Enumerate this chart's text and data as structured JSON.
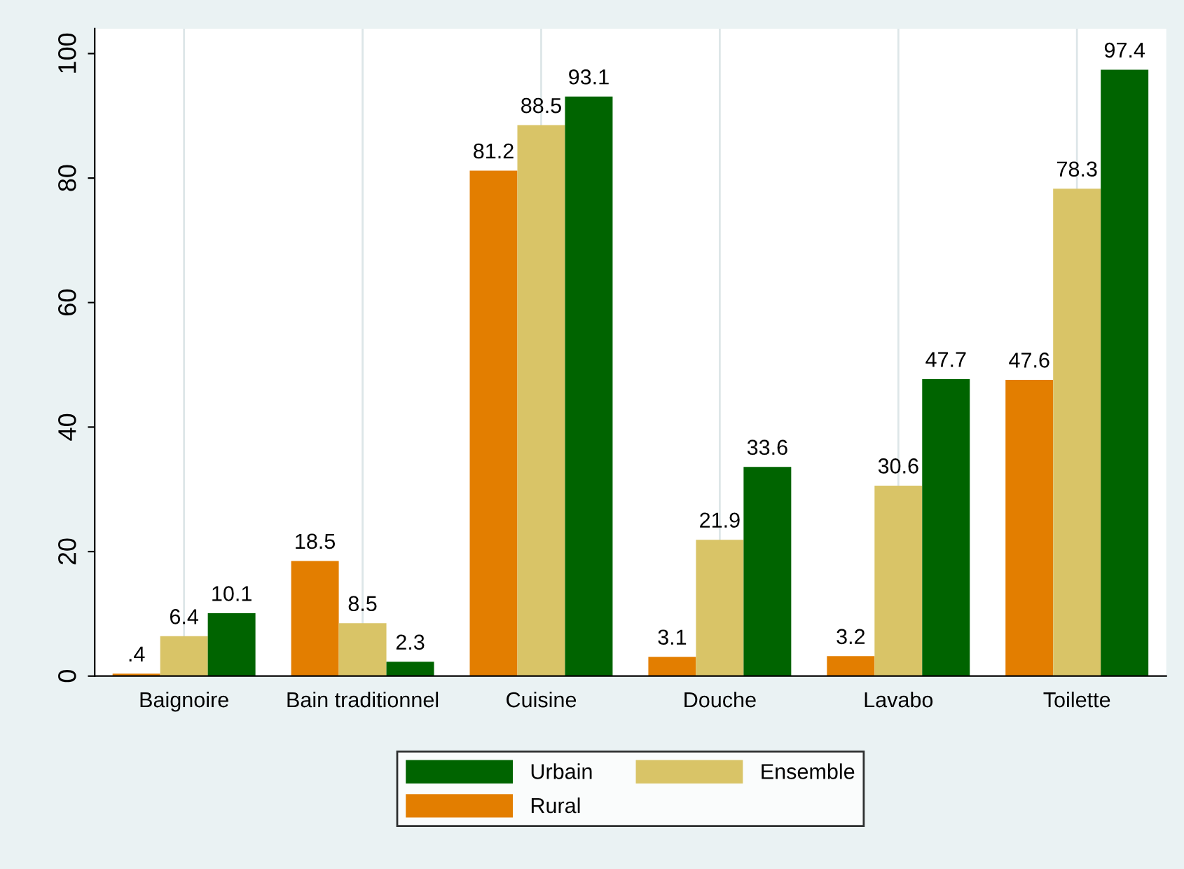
{
  "chart_data": {
    "type": "bar",
    "categories": [
      "Baignoire",
      "Bain traditionnel",
      "Cuisine",
      "Douche",
      "Lavabo",
      "Toilette"
    ],
    "series": [
      {
        "name": "Rural",
        "color": "#e37e00",
        "values": [
          0.4,
          18.5,
          81.2,
          3.1,
          3.2,
          47.6
        ],
        "value_labels": [
          ".4",
          "18.5",
          "81.2",
          "3.1",
          "3.2",
          "47.6"
        ]
      },
      {
        "name": "Ensemble",
        "color": "#d9c467",
        "values": [
          6.4,
          8.5,
          88.5,
          21.9,
          30.6,
          78.3
        ],
        "value_labels": [
          "6.4",
          "8.5",
          "88.5",
          "21.9",
          "30.6",
          "78.3"
        ]
      },
      {
        "name": "Urbain",
        "color": "#006400",
        "values": [
          10.1,
          2.3,
          93.1,
          33.6,
          47.7,
          97.4
        ],
        "value_labels": [
          "10.1",
          "2.3",
          "93.1",
          "33.6",
          "47.7",
          "97.4"
        ]
      }
    ],
    "ylim": [
      0,
      104
    ],
    "yticks": [
      0,
      20,
      40,
      60,
      80,
      100
    ],
    "grid": "x",
    "legend": "bottom"
  }
}
